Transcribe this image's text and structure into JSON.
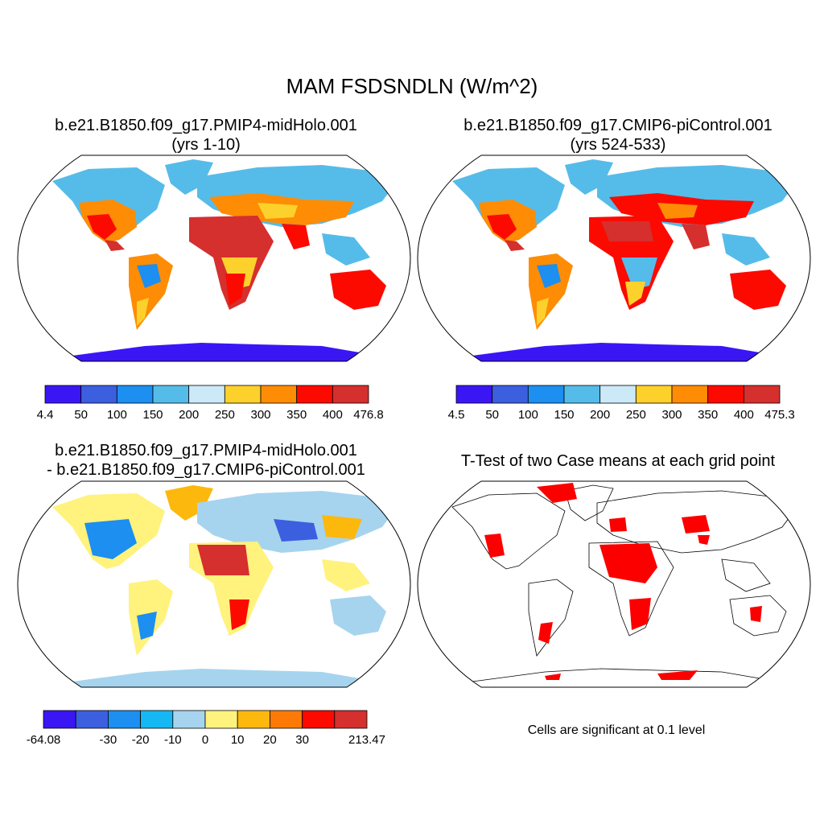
{
  "title": "MAM FSDSNDLN (W/m^2)",
  "panels": [
    {
      "title_line1": "b.e21.B1850.f09_g17.PMIP4-midHolo.001",
      "title_line2": "(yrs 1-10)",
      "colorbar": {
        "colors": [
          "#3a16f5",
          "#3c5fe0",
          "#1c8ff0",
          "#55bce9",
          "#cce9f8",
          "#fdd12b",
          "#fe8c05",
          "#fc0a00",
          "#d52f2e"
        ],
        "labels": [
          "4.4",
          "50",
          "100",
          "150",
          "200",
          "250",
          "300",
          "350",
          "400",
          "476.8"
        ]
      }
    },
    {
      "title_line1": "b.e21.B1850.f09_g17.CMIP6-piControl.001",
      "title_line2": "(yrs 524-533)",
      "colorbar": {
        "colors": [
          "#3a16f5",
          "#3c5fe0",
          "#1c8ff0",
          "#55bce9",
          "#cce9f8",
          "#fdd12b",
          "#fe8c05",
          "#fc0a00",
          "#d52f2e"
        ],
        "labels": [
          "4.5",
          "50",
          "100",
          "150",
          "200",
          "250",
          "300",
          "350",
          "400",
          "475.3"
        ]
      }
    },
    {
      "title_line1": "b.e21.B1850.f09_g17.PMIP4-midHolo.001",
      "title_line2": "- b.e21.B1850.f09_g17.CMIP6-piControl.001",
      "colorbar": {
        "colors": [
          "#3a16f5",
          "#3c5fe0",
          "#1c8ff0",
          "#15b8f2",
          "#a6d4ef",
          "#fff27d",
          "#fdb80e",
          "#fc7a05",
          "#fc0a00",
          "#d52f2e"
        ],
        "labels": [
          "-64.08",
          "",
          "-30",
          "-20",
          "-10",
          "0",
          "10",
          "20",
          "30",
          "",
          "213.47"
        ]
      }
    },
    {
      "title_line1": "T-Test of two Case means at each grid point",
      "note": "Cells are significant at 0.1 level",
      "sig_color": "#fc0000"
    }
  ]
}
